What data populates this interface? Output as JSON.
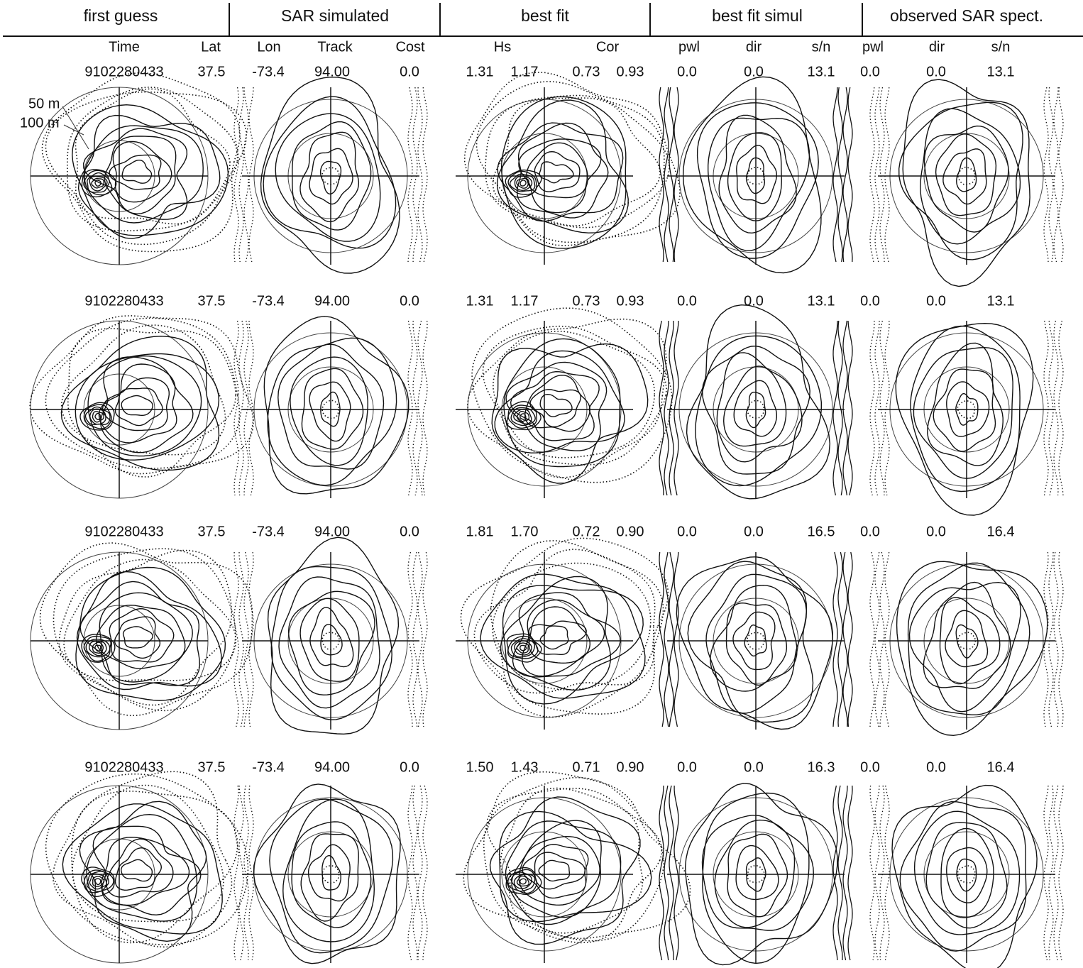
{
  "header": {
    "columns": [
      "first guess",
      "SAR simulated",
      "best fit",
      "best fit simul",
      "observed SAR spect."
    ]
  },
  "subheader": [
    "Time",
    "Lat",
    "Lon",
    "Track",
    "Cost",
    "Hs",
    "Cor",
    "pwl",
    "dir",
    "s/n",
    "pwl",
    "dir",
    "s/n"
  ],
  "annotations": [
    "50 m",
    "100 m"
  ],
  "rows": [
    {
      "values": [
        "9102280433",
        "37.5",
        "-73.4",
        "94.00",
        "0.0",
        "1.31",
        "1.17",
        "0.73",
        "0.93",
        "0.0",
        "0.0",
        "13.1",
        "0.0",
        "0.0",
        "13.1"
      ]
    },
    {
      "values": [
        "9102280433",
        "37.5",
        "-73.4",
        "94.00",
        "0.0",
        "1.31",
        "1.17",
        "0.73",
        "0.93",
        "0.0",
        "0.0",
        "13.1",
        "0.0",
        "0.0",
        "13.1"
      ]
    },
    {
      "values": [
        "9102280433",
        "37.5",
        "-73.4",
        "94.00",
        "0.0",
        "1.81",
        "1.70",
        "0.72",
        "0.90",
        "0.0",
        "0.0",
        "16.5",
        "0.0",
        "0.0",
        "16.4"
      ]
    },
    {
      "values": [
        "9102280433",
        "37.5",
        "-73.4",
        "94.00",
        "0.0",
        "1.50",
        "1.43",
        "0.71",
        "0.90",
        "0.0",
        "0.0",
        "16.3",
        "0.0",
        "0.0",
        "16.4"
      ]
    }
  ]
}
